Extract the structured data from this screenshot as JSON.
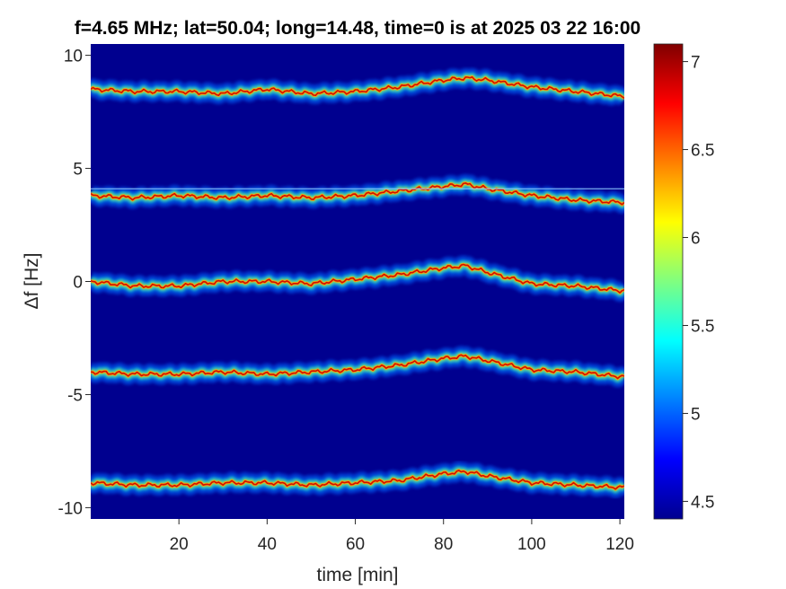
{
  "chart_data": {
    "type": "heatmap",
    "title": "f=4.65 MHz;  lat=50.04; long=14.48, time=0 is at 2025 03 22 16:00",
    "xlabel": "time [min]",
    "ylabel": "Δf [Hz]",
    "xlim": [
      0,
      121
    ],
    "ylim": [
      -10.5,
      10.5
    ],
    "clim": [
      4.4,
      7.1
    ],
    "colormap": "jet",
    "colorbar_position": "right",
    "grid": false,
    "x_ticks": [
      20,
      40,
      60,
      80,
      100,
      120
    ],
    "y_ticks": [
      -10,
      -5,
      0,
      5,
      10
    ],
    "colorbar_ticks": [
      4.5,
      5,
      5.5,
      6,
      6.5,
      7
    ],
    "horizontal_reference_line": 4.1,
    "series": [
      {
        "x": [
          0,
          10,
          20,
          30,
          40,
          50,
          60,
          70,
          80,
          85,
          90,
          100,
          110,
          120
        ],
        "y": [
          8.5,
          8.4,
          8.4,
          8.3,
          8.5,
          8.3,
          8.4,
          8.6,
          8.9,
          9.0,
          8.9,
          8.6,
          8.4,
          8.2
        ]
      },
      {
        "x": [
          0,
          10,
          20,
          30,
          40,
          50,
          60,
          70,
          80,
          85,
          90,
          100,
          110,
          120
        ],
        "y": [
          3.8,
          3.7,
          3.8,
          3.7,
          3.8,
          3.7,
          3.8,
          4.0,
          4.2,
          4.3,
          4.1,
          3.8,
          3.6,
          3.5
        ]
      },
      {
        "x": [
          0,
          10,
          20,
          30,
          40,
          50,
          60,
          70,
          80,
          85,
          90,
          100,
          110,
          120
        ],
        "y": [
          0.0,
          -0.2,
          -0.2,
          0.0,
          0.0,
          -0.1,
          0.1,
          0.3,
          0.6,
          0.7,
          0.4,
          -0.1,
          -0.2,
          -0.4
        ]
      },
      {
        "x": [
          0,
          10,
          20,
          30,
          40,
          50,
          60,
          70,
          80,
          85,
          90,
          100,
          110,
          120
        ],
        "y": [
          -4.0,
          -4.1,
          -4.1,
          -4.0,
          -4.1,
          -4.0,
          -3.9,
          -3.7,
          -3.4,
          -3.3,
          -3.5,
          -3.9,
          -4.0,
          -4.2
        ]
      },
      {
        "x": [
          0,
          10,
          20,
          30,
          40,
          50,
          60,
          70,
          80,
          85,
          90,
          100,
          110,
          120
        ],
        "y": [
          -8.9,
          -9.0,
          -9.0,
          -8.9,
          -8.9,
          -9.0,
          -8.9,
          -8.8,
          -8.5,
          -8.4,
          -8.6,
          -8.9,
          -9.0,
          -9.1
        ]
      }
    ]
  }
}
